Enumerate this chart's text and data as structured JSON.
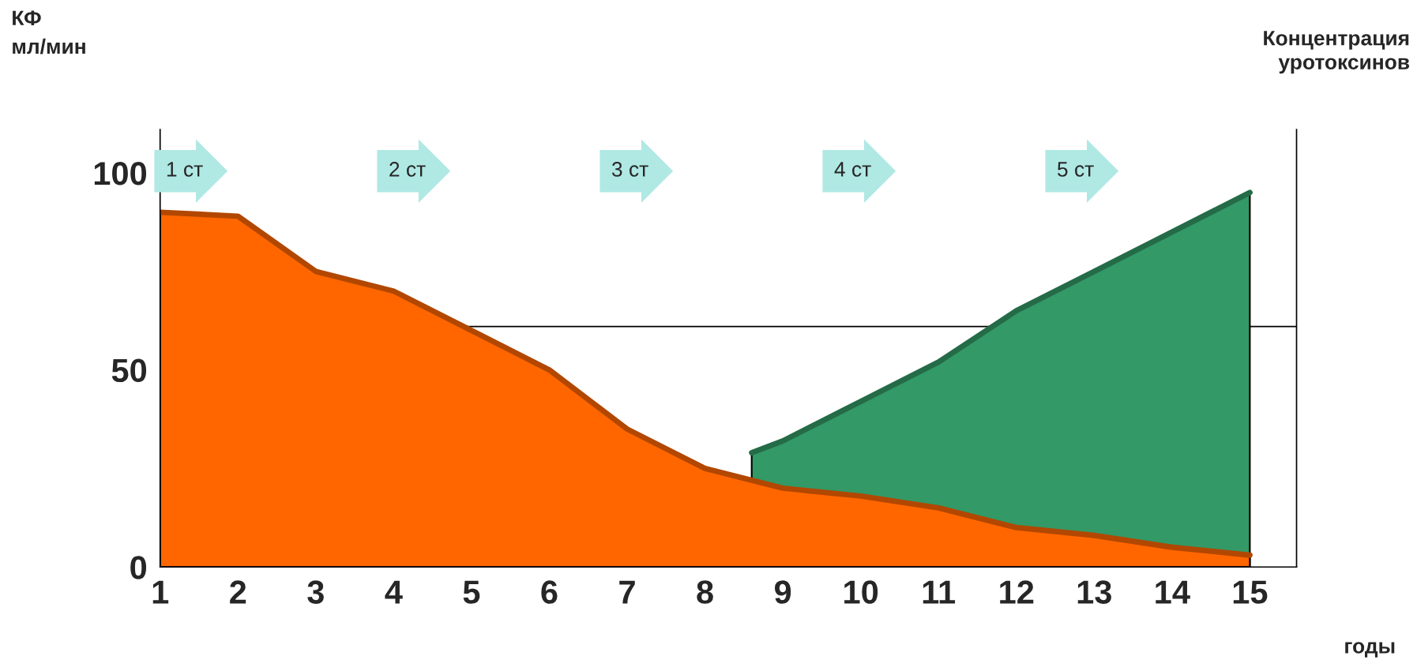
{
  "chart_data": {
    "type": "area",
    "xlabel": "годы",
    "ylabel": "КФ\nмл/мин",
    "y2label": "Концентрация\nуротоксинов",
    "x": [
      1,
      2,
      3,
      4,
      5,
      6,
      7,
      8,
      9,
      10,
      11,
      12,
      13,
      14,
      15
    ],
    "series": [
      {
        "color": "#ff6600",
        "values": [
          90,
          89,
          75,
          70,
          60,
          50,
          35,
          25,
          20,
          18,
          15,
          10,
          8,
          5,
          3
        ]
      },
      {
        "color": "#339966",
        "x": [
          8.6,
          9,
          10,
          11,
          12,
          13,
          14,
          15
        ],
        "values": [
          29,
          32,
          42,
          52,
          65,
          75,
          85,
          95
        ]
      }
    ],
    "xlim": [
      1,
      15.6
    ],
    "ylim": [
      0,
      111
    ],
    "xticks": [
      1,
      2,
      3,
      4,
      5,
      6,
      7,
      8,
      9,
      10,
      11,
      12,
      13,
      14,
      15
    ],
    "yticks": [
      0,
      50,
      100
    ],
    "ref_lines": [
      {
        "axis": "y",
        "value": 61,
        "color": "#000000"
      }
    ],
    "annotations": [
      "1 ст",
      "2 ст",
      "3 ст",
      "4 ст",
      "5 ст"
    ],
    "grid": false,
    "legend": false
  }
}
